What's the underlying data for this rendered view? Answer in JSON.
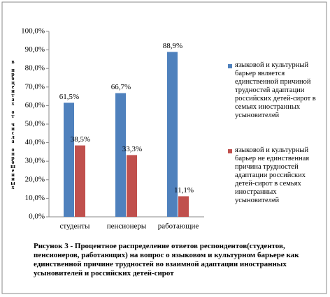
{
  "chart_data": {
    "type": "bar",
    "y_axis_label": "в процентах от числа опрошенных",
    "categories": [
      "студенты",
      "пенсионеры",
      "работающие"
    ],
    "series": [
      {
        "name": "языковой и культурный барьер является единственной причиной трудностей адаптации российских детей-сирот в семьях иностранных усыновителей",
        "color": "#4f81bd",
        "values": [
          61.5,
          66.7,
          88.9
        ],
        "value_labels": [
          "61,5%",
          "66,7%",
          "88,9%"
        ]
      },
      {
        "name": "языковой и культурный барьер не единственная причина трудностей адаптации российских детей-сирот в семьях иностранных усыновителей",
        "color": "#c0504d",
        "values": [
          38.5,
          33.3,
          11.1
        ],
        "value_labels": [
          "38,5%",
          "33,3%",
          "11,1%"
        ]
      }
    ],
    "ylim": [
      0,
      100
    ],
    "yticks": [
      {
        "value": 0,
        "label": "0,0%"
      },
      {
        "value": 10,
        "label": "10,0%"
      },
      {
        "value": 20,
        "label": "20,0%"
      },
      {
        "value": 30,
        "label": "30,0%"
      },
      {
        "value": 40,
        "label": "40,0%"
      },
      {
        "value": 50,
        "label": "50,0%"
      },
      {
        "value": 60,
        "label": "60,0%"
      },
      {
        "value": 70,
        "label": "70,0%"
      },
      {
        "value": 80,
        "label": "80,0%"
      },
      {
        "value": 90,
        "label": "90,0%"
      },
      {
        "value": 100,
        "label": "100,0%"
      }
    ],
    "legend_position": "right",
    "caption": "Рисунок 3 - Процентное распределение ответов респондентов(студентов, пенсионеров, работающих) на вопрос о языковом и культурном барьере как единственной причине трудностей во взаимной адаптации иностранных усыновителей и российских детей-сирот"
  }
}
